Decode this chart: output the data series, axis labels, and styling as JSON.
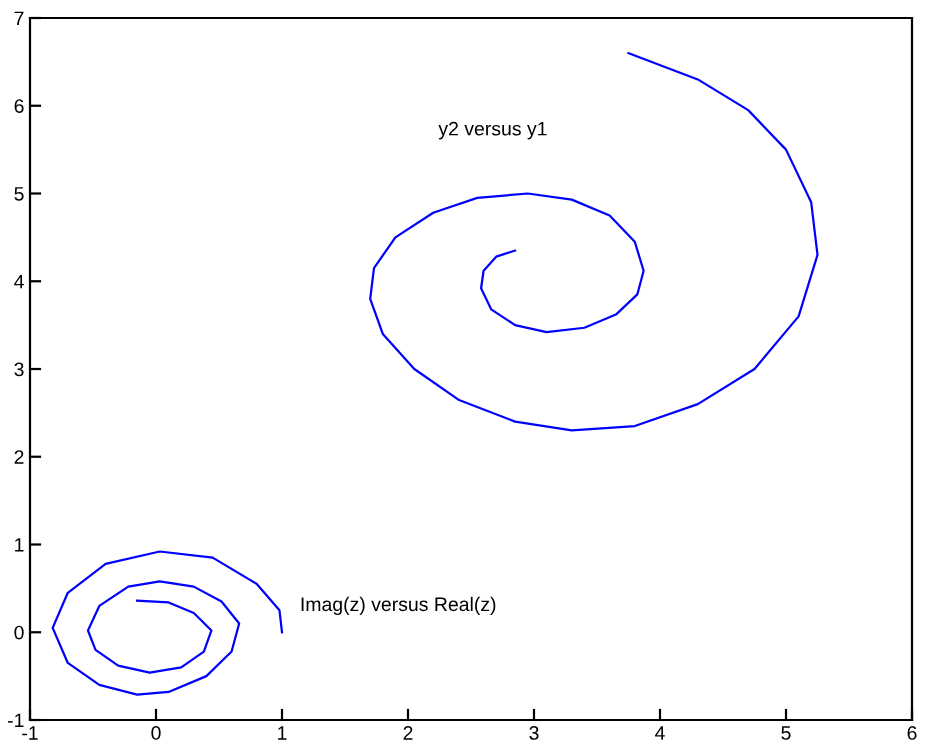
{
  "chart_data": {
    "type": "line",
    "xlim": [
      -1,
      6
    ],
    "ylim": [
      -1,
      7
    ],
    "xticks": [
      -1,
      0,
      1,
      2,
      3,
      4,
      5,
      6
    ],
    "yticks": [
      -1,
      0,
      1,
      2,
      3,
      4,
      5,
      6,
      7
    ],
    "grid": false,
    "marker": "none",
    "line_style": "solid",
    "series": [
      {
        "name": "y2 versus y1",
        "color": "#0000ff",
        "x": [
          2.85,
          2.7,
          2.6,
          2.58,
          2.66,
          2.85,
          3.1,
          3.4,
          3.65,
          3.82,
          3.87,
          3.8,
          3.6,
          3.3,
          2.95,
          2.55,
          2.2,
          1.9,
          1.73,
          1.7,
          1.8,
          2.05,
          2.4,
          2.85,
          3.3,
          3.8,
          4.3,
          4.75,
          5.1,
          5.25,
          5.2,
          5.0,
          4.7,
          4.3,
          3.75
        ],
        "values": [
          4.35,
          4.28,
          4.12,
          3.92,
          3.68,
          3.5,
          3.42,
          3.47,
          3.62,
          3.85,
          4.12,
          4.45,
          4.75,
          4.93,
          5.0,
          4.95,
          4.78,
          4.5,
          4.15,
          3.8,
          3.4,
          3.0,
          2.65,
          2.4,
          2.3,
          2.35,
          2.6,
          3.0,
          3.6,
          4.3,
          4.9,
          5.5,
          5.95,
          6.3,
          6.6
        ]
      },
      {
        "name": "Imag(z) versus Real(z)",
        "color": "#0000ff",
        "x": [
          -0.15,
          0.1,
          0.3,
          0.44,
          0.38,
          0.2,
          -0.05,
          -0.3,
          -0.48,
          -0.54,
          -0.45,
          -0.22,
          0.03,
          0.3,
          0.52,
          0.66,
          0.6,
          0.4,
          0.1,
          -0.15,
          -0.45,
          -0.7,
          -0.82,
          -0.7,
          -0.4,
          0.03,
          0.45,
          0.8,
          0.98,
          1.0
        ],
        "values": [
          0.36,
          0.34,
          0.22,
          0.02,
          -0.22,
          -0.4,
          -0.46,
          -0.38,
          -0.2,
          0.02,
          0.3,
          0.52,
          0.58,
          0.52,
          0.35,
          0.1,
          -0.22,
          -0.5,
          -0.68,
          -0.71,
          -0.6,
          -0.35,
          0.05,
          0.45,
          0.78,
          0.92,
          0.85,
          0.55,
          0.25,
          0.0
        ]
      }
    ]
  }
}
